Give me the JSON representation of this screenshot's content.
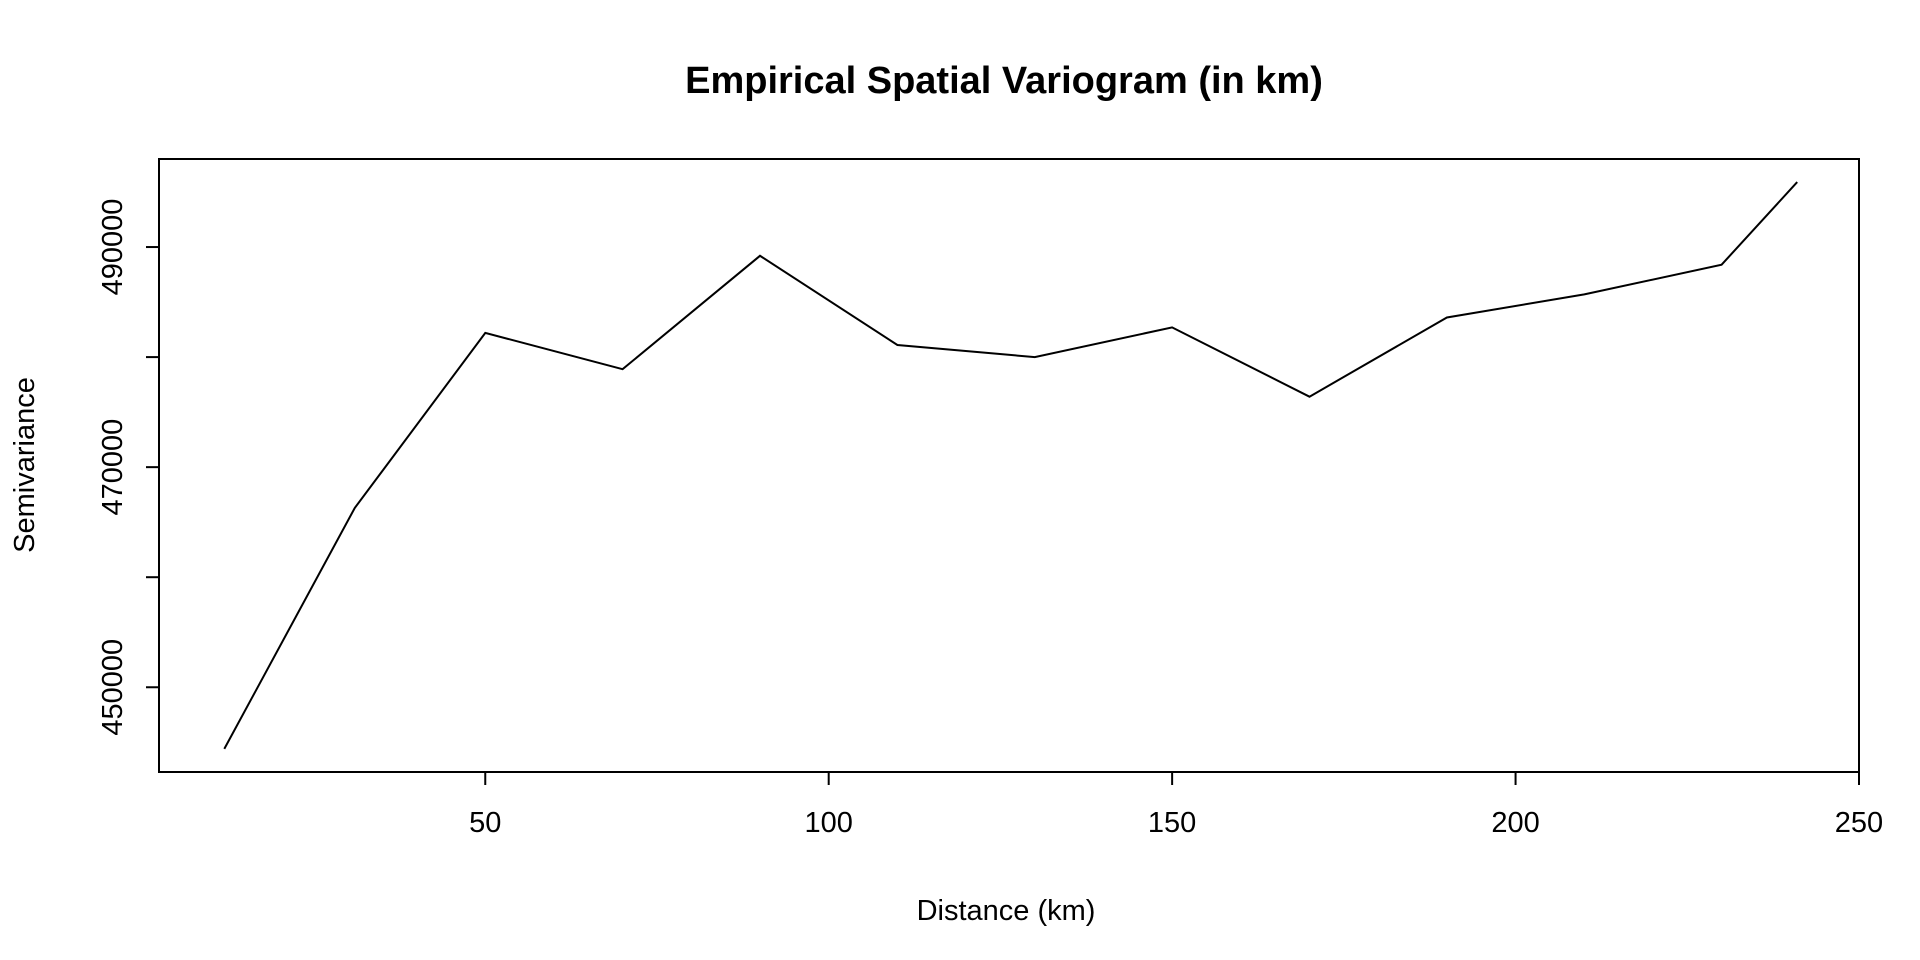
{
  "chart_data": {
    "type": "line",
    "title": "Empirical Spatial Variogram (in km)",
    "xlabel": "Distance (km)",
    "ylabel": "Semivariance",
    "xlim": [
      2.5,
      250
    ],
    "ylim": [
      442300,
      498000
    ],
    "x_ticks": [
      50,
      100,
      150,
      200,
      250
    ],
    "x_tick_labels": [
      "50",
      "100",
      "150",
      "200",
      "250"
    ],
    "y_ticks": [
      450000,
      460000,
      470000,
      480000,
      490000
    ],
    "y_tick_labels": [
      "450000",
      "",
      "470000",
      "",
      "490000"
    ],
    "grid": false,
    "legend": "none",
    "line_color": "#000000",
    "series": [
      {
        "x": [
          12,
          31,
          50,
          70,
          90,
          110,
          130,
          150,
          170,
          190,
          210,
          230,
          241
        ],
        "values": [
          444400,
          466300,
          482200,
          478900,
          489200,
          481100,
          480000,
          482700,
          476400,
          483600,
          485700,
          488400,
          495900
        ]
      }
    ]
  }
}
